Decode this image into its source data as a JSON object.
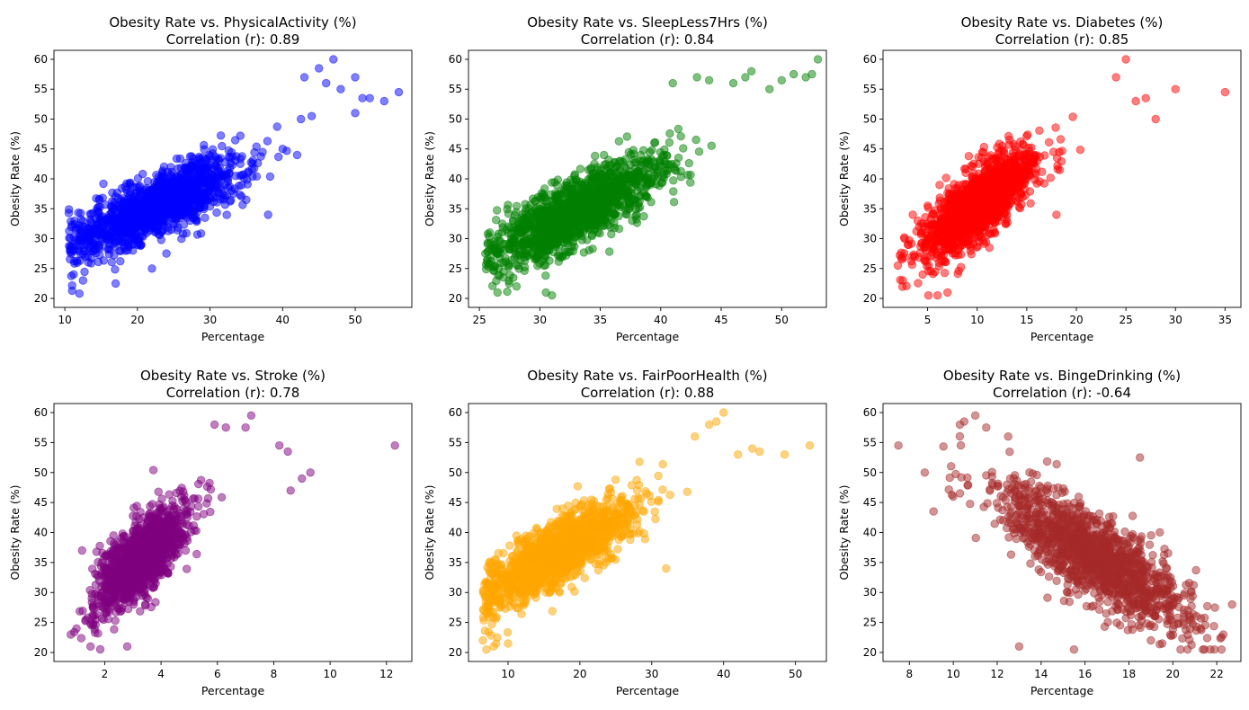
{
  "chart_data": [
    {
      "type": "scatter",
      "title": "Obesity Rate vs. PhysicalActivity (%)",
      "subtitle": "Correlation (r): 0.89",
      "xlabel": "Percentage",
      "ylabel": "Obesity Rate (%)",
      "color": "#0000ff",
      "xlim": [
        8.5,
        57.8
      ],
      "ylim": [
        18.5,
        61.5
      ],
      "xticks": [
        "10",
        "20",
        "30",
        "40",
        "50"
      ],
      "yticks": [
        "20",
        "25",
        "30",
        "35",
        "40",
        "45",
        "50",
        "55",
        "60"
      ],
      "generator": {
        "n": 1400,
        "x_center": 23,
        "x_spread": 6,
        "x_min": 10.5,
        "x_max": 48,
        "slope": 0.55,
        "intercept": 23,
        "noise": 2.5
      },
      "points": [
        [
          11,
          21.3
        ],
        [
          12,
          20.8
        ],
        [
          12.5,
          23
        ],
        [
          17,
          22.5
        ],
        [
          22,
          25
        ],
        [
          24,
          27.5
        ],
        [
          33,
          38
        ],
        [
          35,
          36.5
        ],
        [
          38,
          34
        ],
        [
          40,
          45
        ],
        [
          42,
          44
        ],
        [
          43,
          57
        ],
        [
          44,
          50.5
        ],
        [
          45,
          58.5
        ],
        [
          46,
          56
        ],
        [
          47,
          60
        ],
        [
          48,
          55
        ],
        [
          50,
          51
        ],
        [
          50,
          57
        ],
        [
          51,
          53.5
        ],
        [
          52,
          53.5
        ],
        [
          54,
          53
        ],
        [
          56,
          54.5
        ]
      ]
    },
    {
      "type": "scatter",
      "title": "Obesity Rate vs. SleepLess7Hrs (%)",
      "subtitle": "Correlation (r): 0.84",
      "xlabel": "Percentage",
      "ylabel": "Obesity Rate (%)",
      "color": "#008000",
      "xlim": [
        24.1,
        53.7
      ],
      "ylim": [
        18.5,
        61.5
      ],
      "xticks": [
        "25",
        "30",
        "35",
        "40",
        "45",
        "50"
      ],
      "yticks": [
        "20",
        "25",
        "30",
        "35",
        "40",
        "45",
        "50",
        "55",
        "60"
      ],
      "generator": {
        "n": 1400,
        "x_center": 33,
        "x_spread": 3.5,
        "x_min": 25.5,
        "x_max": 50,
        "slope": 1.0,
        "intercept": 1.5,
        "noise": 2.8
      },
      "points": [
        [
          25.5,
          27.5
        ],
        [
          26.5,
          21
        ],
        [
          27,
          24.5
        ],
        [
          30.5,
          21
        ],
        [
          31,
          20.5
        ],
        [
          38,
          34
        ],
        [
          41,
          56
        ],
        [
          43,
          57
        ],
        [
          44,
          56.5
        ],
        [
          46,
          56
        ],
        [
          47,
          57
        ],
        [
          47.5,
          58
        ],
        [
          49,
          55
        ],
        [
          50,
          56.5
        ],
        [
          51,
          57.5
        ],
        [
          52,
          57
        ],
        [
          52.5,
          57.5
        ],
        [
          53,
          60
        ]
      ]
    },
    {
      "type": "scatter",
      "title": "Obesity Rate vs. Diabetes (%)",
      "subtitle": "Correlation (r): 0.85",
      "xlabel": "Percentage",
      "ylabel": "Obesity Rate (%)",
      "color": "#ff0000",
      "xlim": [
        0.5,
        36.6
      ],
      "ylim": [
        18.5,
        61.5
      ],
      "xticks": [
        "5",
        "10",
        "15",
        "20",
        "25",
        "30",
        "35"
      ],
      "yticks": [
        "20",
        "25",
        "30",
        "35",
        "40",
        "45",
        "50",
        "55",
        "60"
      ],
      "generator": {
        "n": 1400,
        "x_center": 10,
        "x_spread": 2.8,
        "x_min": 2,
        "x_max": 24,
        "slope": 1.2,
        "intercept": 23.5,
        "noise": 3.0
      },
      "points": [
        [
          2,
          25.5
        ],
        [
          2.5,
          23
        ],
        [
          3,
          29
        ],
        [
          3.5,
          34
        ],
        [
          4,
          33
        ],
        [
          4.5,
          24
        ],
        [
          5,
          35.5
        ],
        [
          6,
          20.5
        ],
        [
          7,
          21
        ],
        [
          18,
          34
        ],
        [
          24,
          57
        ],
        [
          25,
          60
        ],
        [
          26,
          53
        ],
        [
          27,
          53.5
        ],
        [
          28,
          50
        ],
        [
          30,
          55
        ],
        [
          35,
          54.5
        ]
      ]
    },
    {
      "type": "scatter",
      "title": "Obesity Rate vs. Stroke (%)",
      "subtitle": "Correlation (r): 0.78",
      "xlabel": "Percentage",
      "ylabel": "Obesity Rate (%)",
      "color": "#800080",
      "xlim": [
        0.2,
        12.9
      ],
      "ylim": [
        18.5,
        61.5
      ],
      "xticks": [
        "2",
        "4",
        "6",
        "8",
        "10",
        "12"
      ],
      "yticks": [
        "20",
        "25",
        "30",
        "35",
        "40",
        "45",
        "50",
        "55",
        "60"
      ],
      "generator": {
        "n": 1400,
        "x_center": 3.3,
        "x_spread": 0.8,
        "x_min": 0.8,
        "x_max": 8.8,
        "slope": 4.0,
        "intercept": 22.5,
        "noise": 3.0
      },
      "points": [
        [
          0.8,
          23
        ],
        [
          1,
          24
        ],
        [
          1.5,
          21
        ],
        [
          1.2,
          37
        ],
        [
          2.8,
          21
        ],
        [
          5.9,
          58
        ],
        [
          6.3,
          57.5
        ],
        [
          7,
          57.5
        ],
        [
          7.2,
          59.5
        ],
        [
          8.2,
          54.5
        ],
        [
          8.5,
          53.5
        ],
        [
          8.6,
          47
        ],
        [
          9,
          49
        ],
        [
          9.3,
          50
        ],
        [
          12.3,
          54.5
        ]
      ]
    },
    {
      "type": "scatter",
      "title": "Obesity Rate vs. FairPoorHealth (%)",
      "subtitle": "Correlation (r): 0.88",
      "xlabel": "Percentage",
      "ylabel": "Obesity Rate (%)",
      "color": "#ffa500",
      "xlim": [
        4.5,
        54.3
      ],
      "ylim": [
        18.5,
        61.5
      ],
      "xticks": [
        "10",
        "20",
        "30",
        "40",
        "50"
      ],
      "yticks": [
        "20",
        "25",
        "30",
        "35",
        "40",
        "45",
        "50",
        "55",
        "60"
      ],
      "generator": {
        "n": 1400,
        "x_center": 17,
        "x_spread": 5.5,
        "x_min": 6.5,
        "x_max": 44,
        "slope": 0.65,
        "intercept": 25.5,
        "noise": 2.8
      },
      "points": [
        [
          6.5,
          22
        ],
        [
          7,
          20.5
        ],
        [
          8,
          21
        ],
        [
          8.5,
          22.5
        ],
        [
          10,
          21.5
        ],
        [
          32,
          34
        ],
        [
          36,
          56
        ],
        [
          38,
          58
        ],
        [
          39,
          58.5
        ],
        [
          40,
          60
        ],
        [
          42,
          53
        ],
        [
          44,
          54
        ],
        [
          45,
          53.5
        ],
        [
          48.5,
          53
        ],
        [
          52,
          54.5
        ]
      ]
    },
    {
      "type": "scatter",
      "title": "Obesity Rate vs. BingeDrinking (%)",
      "subtitle": "Correlation (r): -0.64",
      "xlabel": "Percentage",
      "ylabel": "Obesity Rate (%)",
      "color": "#a52a2a",
      "xlim": [
        6.8,
        23.1
      ],
      "ylim": [
        18.5,
        61.5
      ],
      "xticks": [
        "8",
        "10",
        "12",
        "14",
        "16",
        "18",
        "20",
        "22"
      ],
      "yticks": [
        "20",
        "25",
        "30",
        "35",
        "40",
        "45",
        "50",
        "55",
        "60"
      ],
      "generator": {
        "n": 1400,
        "x_center": 16.5,
        "x_spread": 2.2,
        "x_min": 9.5,
        "x_max": 22.6,
        "slope": -2.2,
        "intercept": 72,
        "noise": 3.5
      },
      "points": [
        [
          7.5,
          54.5
        ],
        [
          8.7,
          50
        ],
        [
          9.1,
          43.5
        ],
        [
          10,
          46
        ],
        [
          10.3,
          58
        ],
        [
          10.5,
          58.5
        ],
        [
          11,
          59.5
        ],
        [
          11.5,
          57.5
        ],
        [
          12.5,
          56
        ],
        [
          13,
          21
        ],
        [
          15.5,
          20.5
        ],
        [
          18.5,
          52.5
        ],
        [
          19,
          22
        ],
        [
          22.3,
          23
        ],
        [
          22.7,
          28
        ]
      ]
    }
  ]
}
